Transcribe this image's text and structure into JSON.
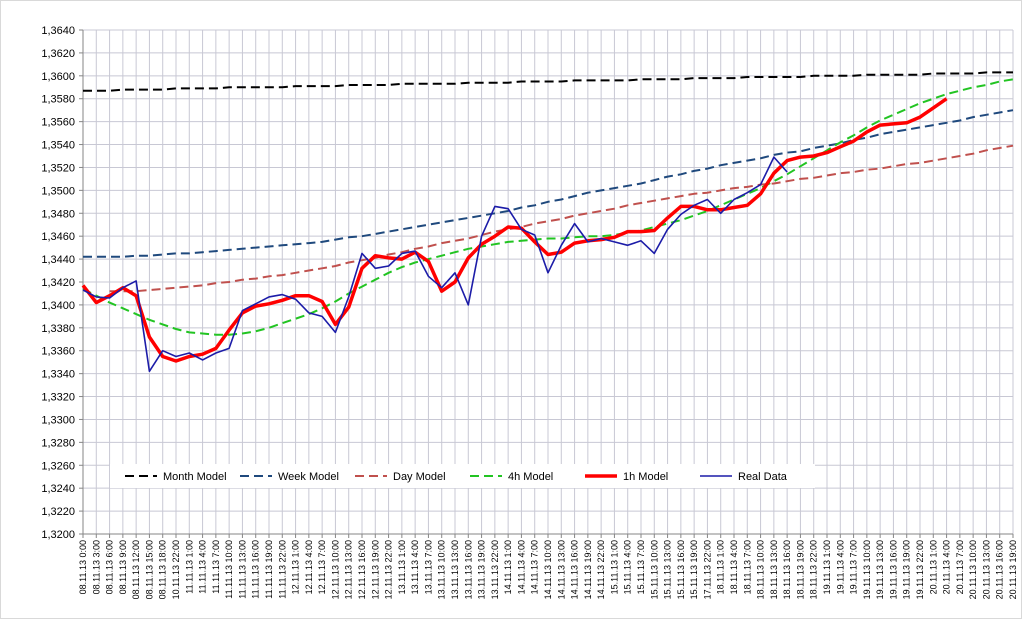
{
  "chart_data": {
    "type": "line",
    "grid": true,
    "legend": "inside-bottom",
    "ylim": [
      1.32,
      1.364
    ],
    "yticks": [
      {
        "value": 1.32,
        "label": "1,3200"
      },
      {
        "value": 1.322,
        "label": "1,3220"
      },
      {
        "value": 1.324,
        "label": "1,3240"
      },
      {
        "value": 1.326,
        "label": "1,3260"
      },
      {
        "value": 1.328,
        "label": "1,3280"
      },
      {
        "value": 1.33,
        "label": "1,3300"
      },
      {
        "value": 1.332,
        "label": "1,3320"
      },
      {
        "value": 1.334,
        "label": "1,3340"
      },
      {
        "value": 1.336,
        "label": "1,3360"
      },
      {
        "value": 1.338,
        "label": "1,3380"
      },
      {
        "value": 1.34,
        "label": "1,3400"
      },
      {
        "value": 1.342,
        "label": "1,3420"
      },
      {
        "value": 1.344,
        "label": "1,3440"
      },
      {
        "value": 1.346,
        "label": "1,3460"
      },
      {
        "value": 1.348,
        "label": "1,3480"
      },
      {
        "value": 1.35,
        "label": "1,3500"
      },
      {
        "value": 1.352,
        "label": "1,3520"
      },
      {
        "value": 1.354,
        "label": "1,3540"
      },
      {
        "value": 1.356,
        "label": "1,3560"
      },
      {
        "value": 1.358,
        "label": "1,3580"
      },
      {
        "value": 1.36,
        "label": "1,3600"
      },
      {
        "value": 1.362,
        "label": "1,3620"
      },
      {
        "value": 1.364,
        "label": "1,3640"
      }
    ],
    "categories": [
      "08.11.13 0:00",
      "08.11.13 3:00",
      "08.11.13 6:00",
      "08.11.13 9:00",
      "08.11.13 12:00",
      "08.11.13 15:00",
      "08.11.13 18:00",
      "10.11.13 22:00",
      "11.11.13 1:00",
      "11.11.13 4:00",
      "11.11.13 7:00",
      "11.11.13 10:00",
      "11.11.13 13:00",
      "11.11.13 16:00",
      "11.11.13 19:00",
      "11.11.13 22:00",
      "12.11.13 1:00",
      "12.11.13 4:00",
      "12.11.13 7:00",
      "12.11.13 10:00",
      "12.11.13 13:00",
      "12.11.13 16:00",
      "12.11.13 19:00",
      "12.11.13 22:00",
      "13.11.13 1:00",
      "13.11.13 4:00",
      "13.11.13 7:00",
      "13.11.13 10:00",
      "13.11.13 13:00",
      "13.11.13 16:00",
      "13.11.13 19:00",
      "13.11.13 22:00",
      "14.11.13 1:00",
      "14.11.13 4:00",
      "14.11.13 7:00",
      "14.11.13 10:00",
      "14.11.13 13:00",
      "14.11.13 16:00",
      "14.11.13 19:00",
      "14.11.13 22:00",
      "15.11.13 1:00",
      "15.11.13 4:00",
      "15.11.13 7:00",
      "15.11.13 10:00",
      "15.11.13 13:00",
      "15.11.13 16:00",
      "15.11.13 19:00",
      "17.11.13 22:00",
      "18.11.13 1:00",
      "18.11.13 4:00",
      "18.11.13 7:00",
      "18.11.13 10:00",
      "18.11.13 13:00",
      "18.11.13 16:00",
      "18.11.13 19:00",
      "18.11.13 22:00",
      "19.11.13 1:00",
      "19.11.13 4:00",
      "19.11.13 7:00",
      "19.11.13 10:00",
      "19.11.13 13:00",
      "19.11.13 16:00",
      "19.11.13 19:00",
      "19.11.13 22:00",
      "20.11.13 1:00",
      "20.11.13 4:00",
      "20.11.13 7:00",
      "20.11.13 10:00",
      "20.11.13 13:00",
      "20.11.13 16:00",
      "20.11.13 19:00"
    ],
    "series": [
      {
        "name": "Month Model",
        "color": "#000000",
        "style": "dashed",
        "values": [
          1.3587,
          1.3587,
          1.3587,
          1.3588,
          1.3588,
          1.3588,
          1.3588,
          1.3589,
          1.3589,
          1.3589,
          1.3589,
          1.359,
          1.359,
          1.359,
          1.359,
          1.359,
          1.3591,
          1.3591,
          1.3591,
          1.3591,
          1.3592,
          1.3592,
          1.3592,
          1.3592,
          1.3593,
          1.3593,
          1.3593,
          1.3593,
          1.3593,
          1.3594,
          1.3594,
          1.3594,
          1.3594,
          1.3595,
          1.3595,
          1.3595,
          1.3595,
          1.3596,
          1.3596,
          1.3596,
          1.3596,
          1.3596,
          1.3597,
          1.3597,
          1.3597,
          1.3597,
          1.3598,
          1.3598,
          1.3598,
          1.3598,
          1.3599,
          1.3599,
          1.3599,
          1.3599,
          1.3599,
          1.36,
          1.36,
          1.36,
          1.36,
          1.3601,
          1.3601,
          1.3601,
          1.3601,
          1.3601,
          1.3602,
          1.3602,
          1.3602,
          1.3602,
          1.3603,
          1.3603,
          1.3603
        ]
      },
      {
        "name": "Week Model",
        "color": "#1f497d",
        "style": "dashed",
        "values": [
          1.3442,
          1.3442,
          1.3442,
          1.3442,
          1.3443,
          1.3443,
          1.3444,
          1.3445,
          1.3445,
          1.3446,
          1.3447,
          1.3448,
          1.3449,
          1.345,
          1.3451,
          1.3452,
          1.3453,
          1.3454,
          1.3455,
          1.3457,
          1.3459,
          1.346,
          1.3462,
          1.3464,
          1.3466,
          1.3468,
          1.347,
          1.3472,
          1.3474,
          1.3476,
          1.3478,
          1.348,
          1.3482,
          1.3485,
          1.3487,
          1.349,
          1.3492,
          1.3495,
          1.3498,
          1.35,
          1.3502,
          1.3504,
          1.3506,
          1.3509,
          1.3512,
          1.3514,
          1.3517,
          1.3519,
          1.3522,
          1.3524,
          1.3526,
          1.3528,
          1.3531,
          1.3533,
          1.3534,
          1.3537,
          1.3539,
          1.3541,
          1.3544,
          1.3546,
          1.3549,
          1.3551,
          1.3553,
          1.3555,
          1.3557,
          1.3559,
          1.3561,
          1.3564,
          1.3566,
          1.3568,
          1.357
        ]
      },
      {
        "name": "Day Model",
        "color": "#c0504d",
        "style": "dashed",
        "values": [
          null,
          null,
          1.3412,
          1.3412,
          1.3412,
          1.3413,
          1.3414,
          1.3415,
          1.3416,
          1.3417,
          1.3419,
          1.342,
          1.3422,
          1.3423,
          1.3425,
          1.3426,
          1.3428,
          1.343,
          1.3432,
          1.3434,
          1.3437,
          1.3439,
          1.3441,
          1.3444,
          1.3446,
          1.3449,
          1.3451,
          1.3454,
          1.3456,
          1.3458,
          1.3461,
          1.3464,
          1.3466,
          1.3468,
          1.3471,
          1.3473,
          1.3475,
          1.3478,
          1.348,
          1.3482,
          1.3484,
          1.3487,
          1.3489,
          1.3491,
          1.3493,
          1.3495,
          1.3497,
          1.3498,
          1.35,
          1.3502,
          1.3503,
          1.3505,
          1.3506,
          1.3508,
          1.351,
          1.3511,
          1.3513,
          1.3515,
          1.3516,
          1.3518,
          1.3519,
          1.3521,
          1.3523,
          1.3524,
          1.3526,
          1.3528,
          1.353,
          1.3532,
          1.3535,
          1.3537,
          1.3539
        ]
      },
      {
        "name": "4h Model",
        "color": "#22c422",
        "style": "dashed",
        "values": [
          1.3414,
          1.3408,
          1.3402,
          1.3397,
          1.3392,
          1.3387,
          1.3383,
          1.3379,
          1.3376,
          1.3375,
          1.3374,
          1.3374,
          1.3375,
          1.3377,
          1.338,
          1.3384,
          1.3388,
          1.3392,
          1.3397,
          1.3403,
          1.341,
          1.3416,
          1.3422,
          1.3428,
          1.3433,
          1.3437,
          1.344,
          1.3443,
          1.3446,
          1.3449,
          1.3451,
          1.3453,
          1.3455,
          1.3456,
          1.3457,
          1.3458,
          1.3458,
          1.3459,
          1.346,
          1.346,
          1.3461,
          1.3463,
          1.3465,
          1.3468,
          1.3471,
          1.3474,
          1.3478,
          1.3482,
          1.3487,
          1.3492,
          1.3497,
          1.3502,
          1.3508,
          1.3514,
          1.3521,
          1.3528,
          1.3535,
          1.3542,
          1.3548,
          1.3555,
          1.3561,
          1.3566,
          1.3571,
          1.3576,
          1.358,
          1.3584,
          1.3587,
          1.359,
          1.3592,
          1.3595,
          1.3597
        ]
      },
      {
        "name": "1h Model",
        "color": "#ff0000",
        "style": "bold",
        "values": [
          1.3417,
          1.3402,
          1.3408,
          1.3415,
          1.3408,
          1.3372,
          1.3355,
          1.3351,
          1.3355,
          1.3357,
          1.3362,
          1.3378,
          1.3393,
          1.3399,
          1.3401,
          1.3404,
          1.3408,
          1.3408,
          1.3403,
          1.3383,
          1.3398,
          1.3432,
          1.3443,
          1.3441,
          1.344,
          1.3446,
          1.3438,
          1.3412,
          1.342,
          1.3441,
          1.3453,
          1.346,
          1.3468,
          1.3467,
          1.3455,
          1.3444,
          1.3446,
          1.3454,
          1.3456,
          1.3457,
          1.3459,
          1.3464,
          1.3464,
          1.3465,
          1.3476,
          1.3486,
          1.3486,
          1.3483,
          1.3483,
          1.3485,
          1.3487,
          1.3497,
          1.3515,
          1.3526,
          1.3529,
          1.353,
          1.3533,
          1.3538,
          1.3543,
          1.3551,
          1.3557,
          1.3558,
          1.3559,
          1.3564,
          1.3572,
          1.358,
          null,
          null,
          null,
          null,
          null
        ]
      },
      {
        "name": "Real Data",
        "color": "#1c1ca8",
        "style": "solid",
        "values": [
          1.3413,
          1.3407,
          1.3406,
          1.3415,
          1.3421,
          1.3342,
          1.336,
          1.3355,
          1.3358,
          1.3352,
          1.3358,
          1.3362,
          1.3395,
          1.3401,
          1.3407,
          1.3409,
          1.3405,
          1.3393,
          1.339,
          1.3376,
          1.3407,
          1.3445,
          1.3432,
          1.3434,
          1.3445,
          1.3447,
          1.3425,
          1.3415,
          1.3428,
          1.34,
          1.346,
          1.3486,
          1.3484,
          1.3466,
          1.3461,
          1.3428,
          1.3452,
          1.3471,
          1.3455,
          1.3458,
          1.3455,
          1.3452,
          1.3456,
          1.3445,
          1.3466,
          1.3479,
          1.3487,
          1.3492,
          1.348,
          1.3492,
          1.3498,
          1.3505,
          1.3529,
          1.3516,
          null,
          null,
          null,
          null,
          null,
          null,
          null,
          null,
          null,
          null,
          null,
          null,
          null,
          null,
          null,
          null,
          null
        ]
      }
    ]
  }
}
